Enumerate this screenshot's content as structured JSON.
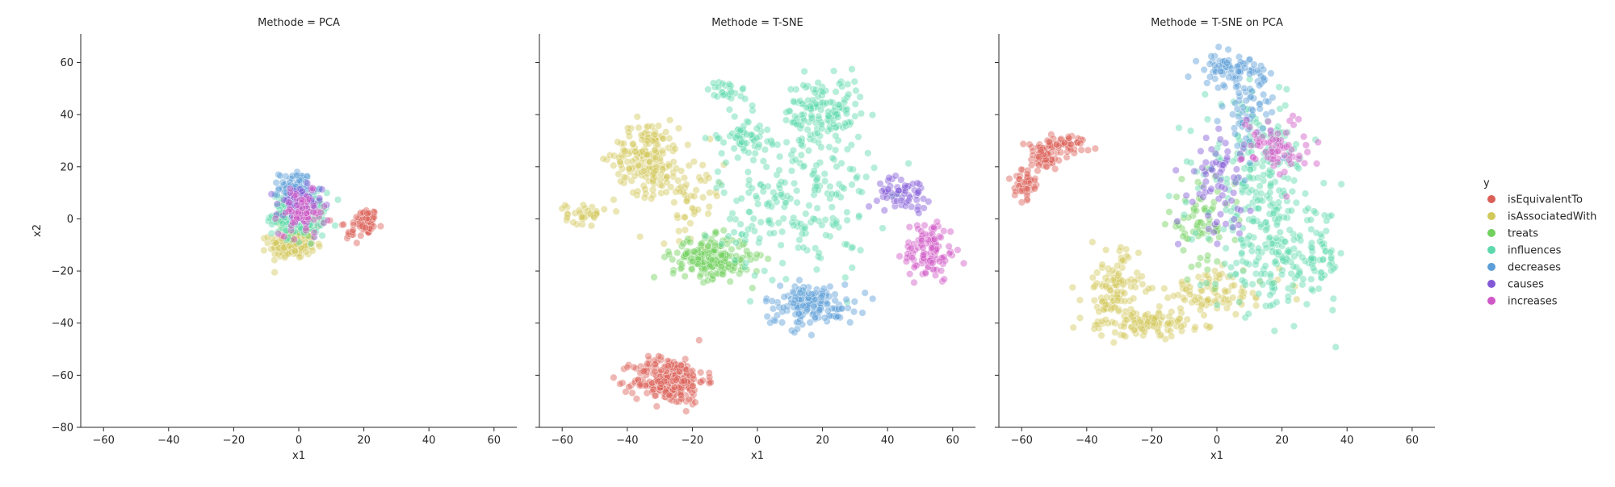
{
  "facet_variable": "Methode",
  "chart_data": {
    "type": "scatter",
    "layout": "facet-grid",
    "shared_y_axis": true,
    "x_label": "x1",
    "y_label": "x2",
    "xlim": [
      -67,
      67
    ],
    "ylim": [
      -80,
      71
    ],
    "x_ticks": [
      -60,
      -40,
      -20,
      0,
      20,
      40,
      60
    ],
    "y_ticks": [
      -80,
      -60,
      -40,
      -20,
      0,
      20,
      40,
      60
    ],
    "grid": false,
    "legend": {
      "title": "y",
      "placement": "right",
      "entries": [
        {
          "name": "isEquivalentTo",
          "color": "#db5f57"
        },
        {
          "name": "isAssociatedWith",
          "color": "#d3c85a"
        },
        {
          "name": "treats",
          "color": "#72d05e"
        },
        {
          "name": "influences",
          "color": "#5ed9ac"
        },
        {
          "name": "decreases",
          "color": "#5b9ed8"
        },
        {
          "name": "causes",
          "color": "#8359d6"
        },
        {
          "name": "increases",
          "color": "#d057c6"
        }
      ]
    },
    "panels": [
      {
        "title": "Methode = PCA",
        "clusters": [
          {
            "series": "isEquivalentTo",
            "cx": 21,
            "cy": -1,
            "sx": 1.5,
            "sy": 2.5,
            "n": 80
          },
          {
            "series": "isEquivalentTo",
            "cx": 16,
            "cy": -4,
            "sx": 2.5,
            "sy": 3,
            "n": 20
          },
          {
            "series": "isAssociatedWith",
            "cx": -2,
            "cy": -10,
            "sx": 3.5,
            "sy": 2.5,
            "n": 160
          },
          {
            "series": "treats",
            "cx": 0,
            "cy": 0,
            "sx": 3,
            "sy": 3.5,
            "n": 90
          },
          {
            "series": "influences",
            "cx": 0,
            "cy": 2,
            "sx": 4,
            "sy": 4,
            "n": 220
          },
          {
            "series": "decreases",
            "cx": -1,
            "cy": 12,
            "sx": 2.5,
            "sy": 3,
            "n": 90
          },
          {
            "series": "causes",
            "cx": 0,
            "cy": 5,
            "sx": 3.5,
            "sy": 4,
            "n": 70
          },
          {
            "series": "increases",
            "cx": 1,
            "cy": 2,
            "sx": 3.5,
            "sy": 4,
            "n": 70
          }
        ]
      },
      {
        "title": "Methode = T-SNE",
        "clusters": [
          {
            "series": "isEquivalentTo",
            "cx": -27,
            "cy": -62,
            "sx": 5.5,
            "sy": 4.5,
            "n": 260
          },
          {
            "series": "isAssociatedWith",
            "cx": -34,
            "cy": 24,
            "sx": 5,
            "sy": 7,
            "n": 170
          },
          {
            "series": "isAssociatedWith",
            "cx": -53,
            "cy": 2,
            "sx": 3,
            "sy": 2,
            "n": 35
          },
          {
            "series": "isAssociatedWith",
            "cx": -20,
            "cy": 10,
            "sx": 5,
            "sy": 8,
            "n": 60
          },
          {
            "series": "treats",
            "cx": -14,
            "cy": -15,
            "sx": 6,
            "sy": 4,
            "n": 210
          },
          {
            "series": "influences",
            "cx": 20,
            "cy": 40,
            "sx": 6,
            "sy": 7,
            "n": 150
          },
          {
            "series": "influences",
            "cx": -4,
            "cy": 32,
            "sx": 4,
            "sy": 4,
            "n": 60
          },
          {
            "series": "influences",
            "cx": -9,
            "cy": 49,
            "sx": 3,
            "sy": 2,
            "n": 25
          },
          {
            "series": "influences",
            "cx": 12,
            "cy": 5,
            "sx": 12,
            "sy": 14,
            "n": 200
          },
          {
            "series": "decreases",
            "cx": 16,
            "cy": -33,
            "sx": 7,
            "sy": 4,
            "n": 150
          },
          {
            "series": "causes",
            "cx": 45,
            "cy": 10,
            "sx": 4,
            "sy": 3,
            "n": 60
          },
          {
            "series": "increases",
            "cx": 53,
            "cy": -12,
            "sx": 4,
            "sy": 6,
            "n": 110
          }
        ]
      },
      {
        "title": "Methode = T-SNE on PCA",
        "clusters": [
          {
            "series": "isEquivalentTo",
            "cx": -59,
            "cy": 14,
            "sx": 1.5,
            "sy": 3,
            "n": 50
          },
          {
            "series": "isEquivalentTo",
            "cx": -53,
            "cy": 24,
            "sx": 3,
            "sy": 3,
            "n": 80
          },
          {
            "series": "isEquivalentTo",
            "cx": -45,
            "cy": 29,
            "sx": 3,
            "sy": 1.5,
            "n": 40
          },
          {
            "series": "isAssociatedWith",
            "cx": -32,
            "cy": -28,
            "sx": 4,
            "sy": 8,
            "n": 120
          },
          {
            "series": "isAssociatedWith",
            "cx": -20,
            "cy": -40,
            "sx": 8,
            "sy": 2.5,
            "n": 100
          },
          {
            "series": "isAssociatedWith",
            "cx": 0,
            "cy": -28,
            "sx": 10,
            "sy": 4,
            "n": 90
          },
          {
            "series": "treats",
            "cx": -5,
            "cy": -2,
            "sx": 5,
            "sy": 8,
            "n": 70
          },
          {
            "series": "influences",
            "cx": 20,
            "cy": -15,
            "sx": 10,
            "sy": 10,
            "n": 220
          },
          {
            "series": "influences",
            "cx": 12,
            "cy": 20,
            "sx": 8,
            "sy": 12,
            "n": 180
          },
          {
            "series": "decreases",
            "cx": 5,
            "cy": 57,
            "sx": 5,
            "sy": 3,
            "n": 80
          },
          {
            "series": "decreases",
            "cx": 10,
            "cy": 40,
            "sx": 4,
            "sy": 8,
            "n": 50
          },
          {
            "series": "causes",
            "cx": 0,
            "cy": 15,
            "sx": 5,
            "sy": 10,
            "n": 70
          },
          {
            "series": "increases",
            "cx": 18,
            "cy": 28,
            "sx": 5,
            "sy": 6,
            "n": 70
          }
        ]
      }
    ]
  }
}
